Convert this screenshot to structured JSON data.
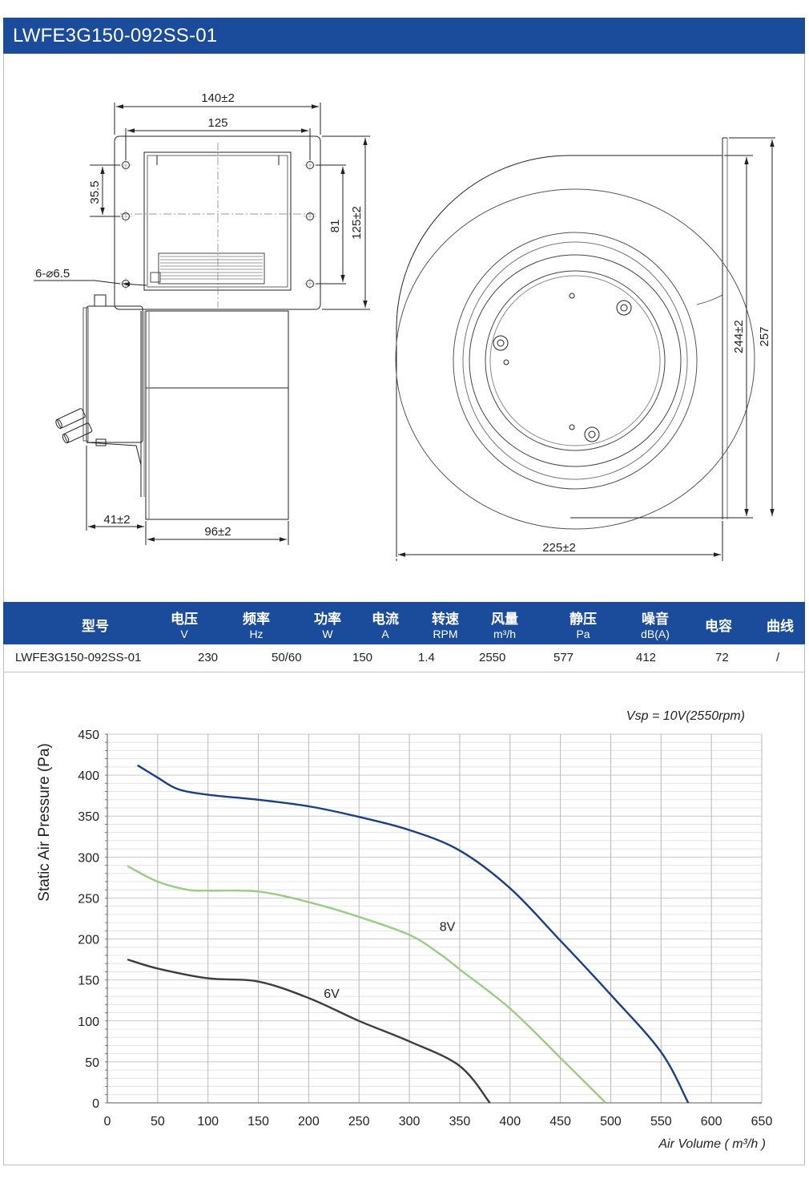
{
  "title": "LWFE3G150-092SS-01",
  "drawing": {
    "dims": {
      "width_outer": "140±2",
      "width_holes": "125",
      "hole_offset": "35.5",
      "hole_spacing": "81",
      "height_flange": "125±2",
      "holes": "6-⌀6.5",
      "depth_motor": "41±2",
      "depth_housing": "96±2",
      "height_outlet": "244±2",
      "height_total": "257",
      "width_total": "225±2"
    }
  },
  "specs": {
    "headers": [
      {
        "cn": "型号",
        "unit": ""
      },
      {
        "cn": "电压",
        "unit": "V"
      },
      {
        "cn": "频率",
        "unit": "Hz"
      },
      {
        "cn": "功率",
        "unit": "W"
      },
      {
        "cn": "电流",
        "unit": "A"
      },
      {
        "cn": "转速",
        "unit": "RPM"
      },
      {
        "cn": "风量",
        "unit": "m³/h"
      },
      {
        "cn": "静压",
        "unit": "Pa"
      },
      {
        "cn": "噪音",
        "unit": "dB(A)"
      },
      {
        "cn": "电容",
        "unit": ""
      },
      {
        "cn": "曲线",
        "unit": ""
      }
    ],
    "row": [
      "LWFE3G150-092SS-01",
      "230",
      "50/60",
      "150",
      "1.4",
      "2550",
      "577",
      "412",
      "72",
      "/"
    ]
  },
  "chart_data": {
    "type": "line",
    "annotation": "Vsp = 10V(2550rpm)",
    "xlabel": "Air Volume ( m³/h )",
    "ylabel": "Static Air Pressure  (Pa)",
    "xlim": [
      0,
      650
    ],
    "ylim": [
      0,
      450
    ],
    "xticks": [
      0,
      50,
      100,
      150,
      200,
      250,
      300,
      350,
      400,
      450,
      500,
      550,
      600,
      650
    ],
    "yticks": [
      0,
      50,
      100,
      150,
      200,
      250,
      300,
      350,
      400,
      450
    ],
    "grid": true,
    "series": [
      {
        "name": "10V",
        "label": "",
        "color": "#1b3f86",
        "x": [
          30,
          50,
          70,
          100,
          150,
          200,
          250,
          300,
          350,
          400,
          450,
          500,
          550,
          577
        ],
        "y": [
          412,
          397,
          383,
          376,
          370,
          362,
          349,
          333,
          308,
          262,
          198,
          132,
          62,
          0
        ]
      },
      {
        "name": "8V",
        "label": "8V",
        "color": "#9acc86",
        "x": [
          20,
          50,
          80,
          100,
          150,
          200,
          250,
          300,
          330,
          350,
          400,
          450,
          495
        ],
        "y": [
          289,
          270,
          260,
          259,
          258,
          245,
          227,
          205,
          182,
          163,
          115,
          55,
          0
        ]
      },
      {
        "name": "6V",
        "label": "6V",
        "color": "#3d3d3d",
        "x": [
          20,
          50,
          100,
          150,
          200,
          250,
          300,
          350,
          380
        ],
        "y": [
          175,
          164,
          152,
          148,
          128,
          100,
          75,
          45,
          0
        ]
      }
    ]
  }
}
